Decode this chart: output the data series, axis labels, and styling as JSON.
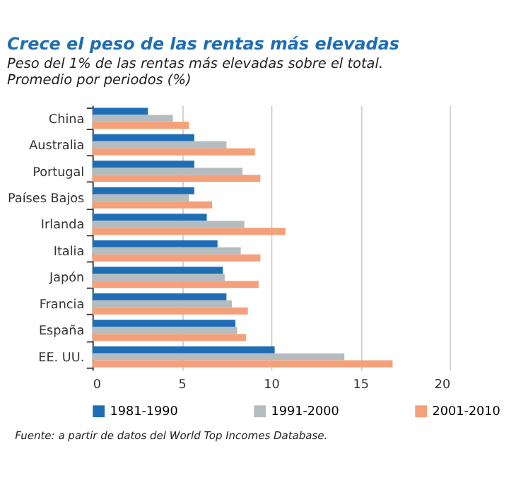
{
  "chart_data": {
    "type": "bar",
    "orientation": "horizontal",
    "title": "Crece el peso de las rentas más elevadas",
    "subtitle": [
      "Peso del 1% de las rentas más elevadas sobre el total.",
      "Promedio por periodos (%)"
    ],
    "categories": [
      "China",
      "Australia",
      "Portugal",
      "Países Bajos",
      "Irlanda",
      "Italia",
      "Japón",
      "Francia",
      "España",
      "EE. UU."
    ],
    "series": [
      {
        "name": "1981-1990",
        "color": "#1f6eb5",
        "values": [
          3.1,
          5.7,
          5.7,
          5.7,
          6.4,
          7.0,
          7.3,
          7.5,
          8.0,
          10.2
        ]
      },
      {
        "name": "1991-2000",
        "color": "#b4bcc0",
        "values": [
          4.5,
          7.5,
          8.4,
          5.4,
          8.5,
          8.3,
          7.4,
          7.8,
          8.1,
          14.1
        ]
      },
      {
        "name": "2001-2010",
        "color": "#f4a07a",
        "values": [
          5.4,
          9.1,
          9.4,
          6.7,
          10.8,
          9.4,
          9.3,
          8.7,
          8.6,
          16.8
        ]
      }
    ],
    "xlim": [
      0,
      20
    ],
    "xticks": [
      0,
      5,
      10,
      15,
      20
    ],
    "grid": "x",
    "legend": "bottom",
    "annotations": [
      "Fuente: a partir de datos del World Top Incomes Database."
    ]
  }
}
